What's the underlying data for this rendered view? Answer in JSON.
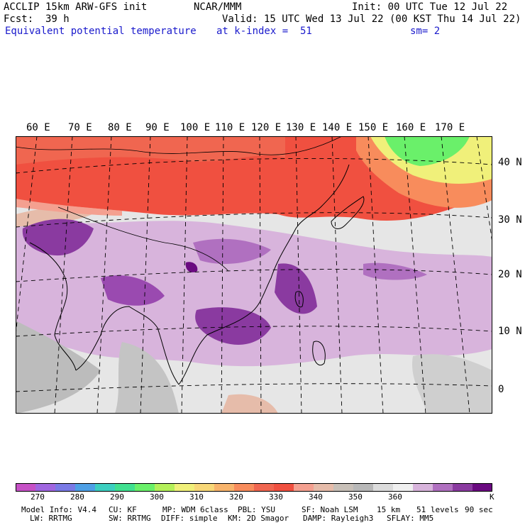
{
  "header": {
    "model": "ACCLIP 15km ARW-GFS init",
    "center": "NCAR/MMM",
    "init": "Init: 00 UTC Tue 12 Jul 22",
    "fcst_label": "Fcst:",
    "fcst_value": "39 h",
    "valid": "Valid: 15 UTC Wed 13 Jul 22 (00 KST Thu 14 Jul 22)",
    "field": "Equivalent potential temperature",
    "level": "at k-index =  51",
    "smooth": "sm= 2"
  },
  "map": {
    "lon_labels": [
      "60 E",
      "70 E",
      "80 E",
      "90 E",
      "100 E",
      "110 E",
      "120 E",
      "130 E",
      "140 E",
      "150 E",
      "160 E",
      "170 E"
    ],
    "lat_labels": [
      "40 N",
      "30 N",
      "20 N",
      "10 N",
      "0"
    ]
  },
  "colorbar": {
    "unit": "K",
    "tick_labels": [
      "270",
      "280",
      "290",
      "300",
      "310",
      "320",
      "330",
      "340",
      "350",
      "360"
    ],
    "colors": [
      "#c651c6",
      "#a066e0",
      "#7a7ae6",
      "#4ea0e6",
      "#3ccfc0",
      "#40e090",
      "#6af06a",
      "#b4f05a",
      "#f0f07a",
      "#f8d878",
      "#f8b46c",
      "#f88c5c",
      "#f06650",
      "#f05040",
      "#f4a090",
      "#e6bcaa",
      "#c8c0b8",
      "#b8b8b8",
      "#dcdcdc",
      "#f0f0f0",
      "#d8b4dc",
      "#b070c0",
      "#8a3aa0",
      "#6a0a80"
    ]
  },
  "footer": {
    "line1": [
      "Model Info: V4.4",
      "CU: KF",
      "MP: WDM 6class",
      "PBL: YSU",
      "SF: Noah LSM",
      "15 km",
      "51 levels",
      "90 sec"
    ],
    "line2": [
      "LW: RRTMG",
      "SW: RRTMG",
      "DIFF: simple",
      "KM: 2D Smagor",
      "DAMP: Rayleigh3",
      "SFLAY: MM5"
    ]
  }
}
